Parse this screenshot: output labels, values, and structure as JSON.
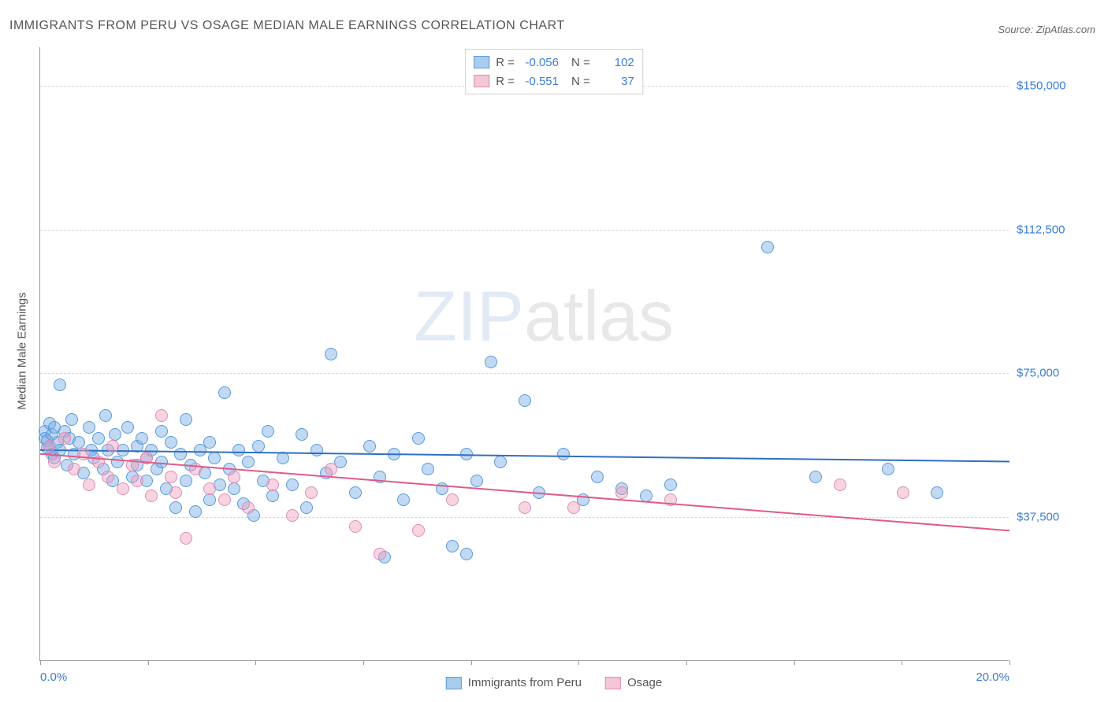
{
  "title": "IMMIGRANTS FROM PERU VS OSAGE MEDIAN MALE EARNINGS CORRELATION CHART",
  "source_label": "Source:",
  "source_name": "ZipAtlas.com",
  "y_axis_label": "Median Male Earnings",
  "watermark_bold": "ZIP",
  "watermark_thin": "atlas",
  "chart": {
    "type": "scatter",
    "xlim": [
      0,
      20
    ],
    "ylim": [
      0,
      160000
    ],
    "x_ticks": [
      0,
      2.22,
      4.44,
      6.67,
      8.89,
      11.11,
      13.33,
      15.56,
      17.78,
      20
    ],
    "x_tick_labels": {
      "0": "0.0%",
      "20": "20.0%"
    },
    "y_gridlines": [
      37500,
      75000,
      112500,
      150000
    ],
    "y_tick_labels": [
      "$37,500",
      "$75,000",
      "$112,500",
      "$150,000"
    ],
    "background_color": "#ffffff",
    "grid_color": "#d8d8d8",
    "axis_color": "#999999",
    "marker_radius": 8,
    "marker_stroke_width": 1
  },
  "series": [
    {
      "name": "Immigrants from Peru",
      "fill": "rgba(120,170,230,0.45)",
      "stroke": "#5a9bd8",
      "swatch_fill": "#a9cdef",
      "swatch_stroke": "#5a9bd8",
      "trend_color": "#2f6fc4",
      "trend_y_at_x0": 55000,
      "trend_y_at_xmax": 52000,
      "R": "-0.056",
      "N": "102",
      "points": [
        [
          0.1,
          60000
        ],
        [
          0.1,
          58000
        ],
        [
          0.15,
          55500
        ],
        [
          0.15,
          57500
        ],
        [
          0.2,
          62000
        ],
        [
          0.2,
          56000
        ],
        [
          0.25,
          54000
        ],
        [
          0.25,
          59000
        ],
        [
          0.3,
          61000
        ],
        [
          0.3,
          53000
        ],
        [
          0.35,
          57000
        ],
        [
          0.4,
          55000
        ],
        [
          0.4,
          72000
        ],
        [
          0.5,
          60000
        ],
        [
          0.55,
          51000
        ],
        [
          0.6,
          58000
        ],
        [
          0.65,
          63000
        ],
        [
          0.7,
          54000
        ],
        [
          0.8,
          57000
        ],
        [
          0.9,
          49000
        ],
        [
          1.0,
          61000
        ],
        [
          1.05,
          55000
        ],
        [
          1.1,
          53000
        ],
        [
          1.2,
          58000
        ],
        [
          1.3,
          50000
        ],
        [
          1.35,
          64000
        ],
        [
          1.4,
          55000
        ],
        [
          1.5,
          47000
        ],
        [
          1.55,
          59000
        ],
        [
          1.6,
          52000
        ],
        [
          1.7,
          55000
        ],
        [
          1.8,
          61000
        ],
        [
          1.9,
          48000
        ],
        [
          2.0,
          56000
        ],
        [
          2.0,
          51000
        ],
        [
          2.1,
          58000
        ],
        [
          2.2,
          53000
        ],
        [
          2.2,
          47000
        ],
        [
          2.3,
          55000
        ],
        [
          2.4,
          50000
        ],
        [
          2.5,
          60000
        ],
        [
          2.5,
          52000
        ],
        [
          2.6,
          45000
        ],
        [
          2.7,
          57000
        ],
        [
          2.8,
          40000
        ],
        [
          2.9,
          54000
        ],
        [
          3.0,
          47000
        ],
        [
          3.0,
          63000
        ],
        [
          3.1,
          51000
        ],
        [
          3.2,
          39000
        ],
        [
          3.3,
          55000
        ],
        [
          3.4,
          49000
        ],
        [
          3.5,
          57000
        ],
        [
          3.5,
          42000
        ],
        [
          3.6,
          53000
        ],
        [
          3.7,
          46000
        ],
        [
          3.8,
          70000
        ],
        [
          3.9,
          50000
        ],
        [
          4.0,
          45000
        ],
        [
          4.1,
          55000
        ],
        [
          4.2,
          41000
        ],
        [
          4.3,
          52000
        ],
        [
          4.4,
          38000
        ],
        [
          4.5,
          56000
        ],
        [
          4.6,
          47000
        ],
        [
          4.7,
          60000
        ],
        [
          4.8,
          43000
        ],
        [
          5.0,
          53000
        ],
        [
          5.2,
          46000
        ],
        [
          5.4,
          59000
        ],
        [
          5.5,
          40000
        ],
        [
          5.7,
          55000
        ],
        [
          5.9,
          49000
        ],
        [
          6.0,
          80000
        ],
        [
          6.2,
          52000
        ],
        [
          6.5,
          44000
        ],
        [
          6.8,
          56000
        ],
        [
          7.0,
          48000
        ],
        [
          7.1,
          27000
        ],
        [
          7.3,
          54000
        ],
        [
          7.5,
          42000
        ],
        [
          7.8,
          58000
        ],
        [
          8.0,
          50000
        ],
        [
          8.3,
          45000
        ],
        [
          8.5,
          30000
        ],
        [
          8.8,
          54000
        ],
        [
          8.8,
          28000
        ],
        [
          9.0,
          47000
        ],
        [
          9.3,
          78000
        ],
        [
          9.5,
          52000
        ],
        [
          10.0,
          68000
        ],
        [
          10.3,
          44000
        ],
        [
          10.8,
          54000
        ],
        [
          11.2,
          42000
        ],
        [
          11.5,
          48000
        ],
        [
          12.0,
          45000
        ],
        [
          12.5,
          43000
        ],
        [
          13.0,
          46000
        ],
        [
          15.0,
          108000
        ],
        [
          16.0,
          48000
        ],
        [
          17.5,
          50000
        ],
        [
          18.5,
          44000
        ]
      ]
    },
    {
      "name": "Osage",
      "fill": "rgba(240,160,190,0.45)",
      "stroke": "#e28bb0",
      "swatch_fill": "#f5c5d8",
      "swatch_stroke": "#e28bb0",
      "trend_color": "#e05a8a",
      "trend_y_at_x0": 54000,
      "trend_y_at_xmax": 34000,
      "R": "-0.551",
      "N": "37",
      "points": [
        [
          0.2,
          56000
        ],
        [
          0.3,
          52000
        ],
        [
          0.5,
          58000
        ],
        [
          0.7,
          50000
        ],
        [
          0.9,
          54000
        ],
        [
          1.0,
          46000
        ],
        [
          1.2,
          52000
        ],
        [
          1.4,
          48000
        ],
        [
          1.5,
          56000
        ],
        [
          1.7,
          45000
        ],
        [
          1.9,
          51000
        ],
        [
          2.0,
          47000
        ],
        [
          2.2,
          53000
        ],
        [
          2.3,
          43000
        ],
        [
          2.5,
          64000
        ],
        [
          2.7,
          48000
        ],
        [
          2.8,
          44000
        ],
        [
          3.0,
          32000
        ],
        [
          3.2,
          50000
        ],
        [
          3.5,
          45000
        ],
        [
          3.8,
          42000
        ],
        [
          4.0,
          48000
        ],
        [
          4.3,
          40000
        ],
        [
          4.8,
          46000
        ],
        [
          5.2,
          38000
        ],
        [
          5.6,
          44000
        ],
        [
          6.0,
          50000
        ],
        [
          6.5,
          35000
        ],
        [
          7.0,
          28000
        ],
        [
          7.8,
          34000
        ],
        [
          8.5,
          42000
        ],
        [
          10.0,
          40000
        ],
        [
          11.0,
          40000
        ],
        [
          12.0,
          44000
        ],
        [
          13.0,
          42000
        ],
        [
          16.5,
          46000
        ],
        [
          17.8,
          44000
        ]
      ]
    }
  ],
  "stats_labels": {
    "R": "R =",
    "N": "N ="
  },
  "legend_items": [
    "Immigrants from Peru",
    "Osage"
  ]
}
